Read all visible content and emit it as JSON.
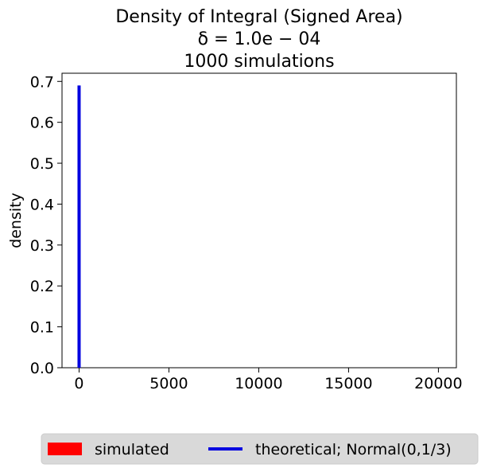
{
  "chart_data": {
    "type": "line",
    "title_lines": [
      "Density of Integral (Signed Area)",
      "δ = 1.0e − 04",
      "1000 simulations"
    ],
    "xlabel": "",
    "ylabel": "density",
    "xlim": [
      -950,
      21000
    ],
    "ylim": [
      0,
      0.72
    ],
    "x_ticks": [
      0,
      5000,
      10000,
      15000,
      20000
    ],
    "x_tick_labels": [
      "0",
      "5000",
      "10000",
      "15000",
      "20000"
    ],
    "y_ticks": [
      0.0,
      0.1,
      0.2,
      0.3,
      0.4,
      0.5,
      0.6,
      0.7
    ],
    "y_tick_labels": [
      "0.0",
      "0.1",
      "0.2",
      "0.3",
      "0.4",
      "0.5",
      "0.6",
      "0.7"
    ],
    "grid": false,
    "legend_placement": "bottom",
    "series": [
      {
        "name": "simulated",
        "kind": "histogram",
        "color": "#ff0000",
        "bins": []
      },
      {
        "name": "theoretical; Normal(0,1/3)",
        "kind": "line",
        "color": "#0000e0",
        "x": [
          0,
          0
        ],
        "y": [
          0,
          0.69
        ]
      }
    ]
  }
}
